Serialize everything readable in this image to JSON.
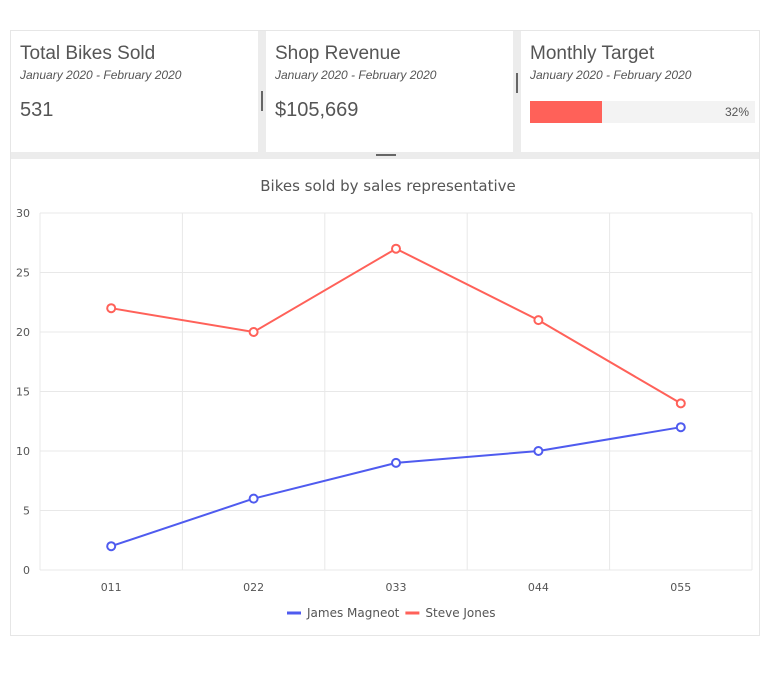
{
  "cards": [
    {
      "title": "Total Bikes Sold",
      "subtitle": "January 2020 - February 2020",
      "value": "531"
    },
    {
      "title": "Shop Revenue",
      "subtitle": "January 2020 - February 2020",
      "value": "$105,669"
    },
    {
      "title": "Monthly Target",
      "subtitle": "January 2020 - February 2020",
      "progress": 32,
      "progress_label": "32%",
      "progress_color": "#ff6159"
    }
  ],
  "chart_data": {
    "type": "line",
    "title": "Bikes sold by sales representative",
    "categories": [
      "011",
      "022",
      "033",
      "044",
      "055"
    ],
    "ylim": [
      0,
      30
    ],
    "yticks": [
      "0",
      "5",
      "10",
      "15",
      "20",
      "25",
      "30"
    ],
    "grid": true,
    "legend": "bottom",
    "series": [
      {
        "name": "James Magneot",
        "color": "#4f5bef",
        "values": [
          2,
          6,
          9,
          10,
          12
        ]
      },
      {
        "name": "Steve Jones",
        "color": "#ff6159",
        "values": [
          22,
          20,
          27,
          21,
          14
        ]
      }
    ]
  }
}
